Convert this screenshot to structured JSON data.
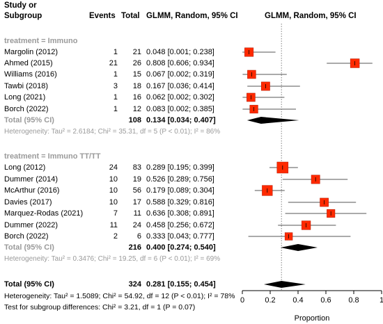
{
  "header": {
    "study_line1": "Study or",
    "study_line2": "Subgroup",
    "events": "Events",
    "total": "Total",
    "ci_col": "GLMM, Random, 95% CI",
    "plot_col": "GLMM, Random, 95% CI"
  },
  "groups": [
    {
      "label": "treatment = Immuno",
      "studies": [
        {
          "name": "Margolin (2012)",
          "events": "1",
          "total": "21",
          "ci": "0.048 [0.001; 0.238]"
        },
        {
          "name": "Ahmed (2015)",
          "events": "21",
          "total": "26",
          "ci": "0.808 [0.606; 0.934]"
        },
        {
          "name": "Williams (2016)",
          "events": "1",
          "total": "15",
          "ci": "0.067 [0.002; 0.319]"
        },
        {
          "name": "Tawbi (2018)",
          "events": "3",
          "total": "18",
          "ci": "0.167 [0.036; 0.414]"
        },
        {
          "name": "Long (2021)",
          "events": "1",
          "total": "16",
          "ci": "0.062 [0.002; 0.302]"
        },
        {
          "name": "Borch (2022)",
          "events": "1",
          "total": "12",
          "ci": "0.083 [0.002; 0.385]"
        }
      ],
      "pooled": {
        "name": "Total (95% CI)",
        "total": "108",
        "ci": "0.134 [0.034; 0.407]"
      },
      "heterogeneity": "Heterogeneity: Tau² = 2.6184; Chi² = 35.31, df = 5 (P < 0.01); I² = 86%"
    },
    {
      "label": "treatment = Immuno TT/TT",
      "studies": [
        {
          "name": "Long (2012)",
          "events": "24",
          "total": "83",
          "ci": "0.289 [0.195; 0.399]"
        },
        {
          "name": "Dummer (2014)",
          "events": "10",
          "total": "19",
          "ci": "0.526 [0.289; 0.756]"
        },
        {
          "name": "McArthur (2016)",
          "events": "10",
          "total": "56",
          "ci": "0.179 [0.089; 0.304]"
        },
        {
          "name": "Davies (2017)",
          "events": "10",
          "total": "17",
          "ci": "0.588 [0.329; 0.816]"
        },
        {
          "name": "Marquez-Rodas (2021)",
          "events": "7",
          "total": "11",
          "ci": "0.636 [0.308; 0.891]"
        },
        {
          "name": "Dummer (2022)",
          "events": "11",
          "total": "24",
          "ci": "0.458 [0.256; 0.672]"
        },
        {
          "name": "Borch (2022)",
          "events": "2",
          "total": "6",
          "ci": "0.333 [0.043; 0.777]"
        }
      ],
      "pooled": {
        "name": "Total (95% CI)",
        "total": "216",
        "ci": "0.400 [0.274; 0.540]"
      },
      "heterogeneity": "Heterogeneity: Tau² = 0.3476; Chi² = 19.25, df = 6 (P < 0.01); I² = 69%"
    }
  ],
  "overall": {
    "name": "Total (95% CI)",
    "total": "324",
    "ci": "0.281 [0.155; 0.454]",
    "heterogeneity": "Heterogeneity: Tau² = 1.5089; Chi² = 54.92, df = 12 (P < 0.01); I² = 78%",
    "subgroup_test": "Test for subgroup differences: Chi² = 3.21, df = 1 (P = 0.07)"
  },
  "colors": {
    "marker": "#ff2a00",
    "diamond": "#000000",
    "group_label": "#9a9a9a",
    "ref_line": "#808080"
  },
  "chart_data": {
    "type": "forest",
    "xlabel": "Proportion",
    "xlim": [
      0,
      1
    ],
    "xticks": [
      "0",
      "0.2",
      "0.4",
      "0.6",
      "0.8",
      "1"
    ],
    "reference_line": 0.281,
    "studies": [
      {
        "name": "Margolin (2012)",
        "est": 0.048,
        "lo": 0.001,
        "hi": 0.238,
        "weight": 21
      },
      {
        "name": "Ahmed (2015)",
        "est": 0.808,
        "lo": 0.606,
        "hi": 0.934,
        "weight": 26
      },
      {
        "name": "Williams (2016)",
        "est": 0.067,
        "lo": 0.002,
        "hi": 0.319,
        "weight": 15
      },
      {
        "name": "Tawbi (2018)",
        "est": 0.167,
        "lo": 0.036,
        "hi": 0.414,
        "weight": 18
      },
      {
        "name": "Long (2021)",
        "est": 0.062,
        "lo": 0.002,
        "hi": 0.302,
        "weight": 16
      },
      {
        "name": "Borch (2022)",
        "est": 0.083,
        "lo": 0.002,
        "hi": 0.385,
        "weight": 12
      },
      {
        "name": "Long (2012)",
        "est": 0.289,
        "lo": 0.195,
        "hi": 0.399,
        "weight": 83
      },
      {
        "name": "Dummer (2014)",
        "est": 0.526,
        "lo": 0.289,
        "hi": 0.756,
        "weight": 19
      },
      {
        "name": "McArthur (2016)",
        "est": 0.179,
        "lo": 0.089,
        "hi": 0.304,
        "weight": 56
      },
      {
        "name": "Davies (2017)",
        "est": 0.588,
        "lo": 0.329,
        "hi": 0.816,
        "weight": 17
      },
      {
        "name": "Marquez-Rodas (2021)",
        "est": 0.636,
        "lo": 0.308,
        "hi": 0.891,
        "weight": 11
      },
      {
        "name": "Dummer (2022)",
        "est": 0.458,
        "lo": 0.256,
        "hi": 0.672,
        "weight": 24
      },
      {
        "name": "Borch (2022)",
        "est": 0.333,
        "lo": 0.043,
        "hi": 0.777,
        "weight": 6
      }
    ],
    "pooled": [
      {
        "name": "treatment = Immuno",
        "est": 0.134,
        "lo": 0.034,
        "hi": 0.407
      },
      {
        "name": "treatment = Immuno TT/TT",
        "est": 0.4,
        "lo": 0.274,
        "hi": 0.54
      },
      {
        "name": "Total (95% CI)",
        "est": 0.281,
        "lo": 0.155,
        "hi": 0.454
      }
    ]
  }
}
